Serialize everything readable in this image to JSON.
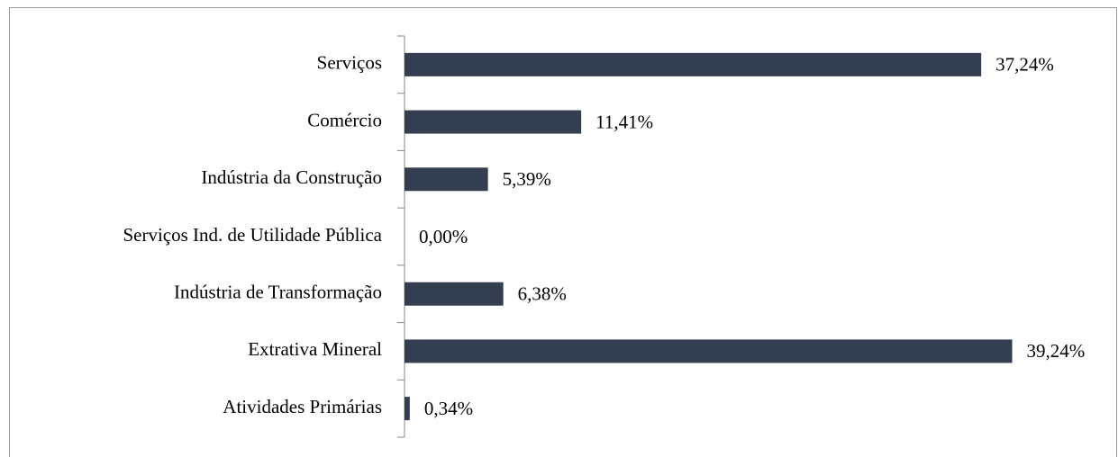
{
  "chart_data": {
    "type": "bar",
    "orientation": "horizontal",
    "color": "#333f50",
    "categories": [
      "Serviços",
      "Comércio",
      "Indústria da Construção",
      "Serviços Ind. de Utilidade Pública",
      "Indústria de Transformação",
      "Extrativa Mineral",
      "Atividades Primárias"
    ],
    "values": [
      37.24,
      11.41,
      5.39,
      0.0,
      6.38,
      39.24,
      0.34
    ],
    "value_labels": [
      "37,24%",
      "11,41%",
      "5,39%",
      "0,00%",
      "6,38%",
      "39,24%",
      "0,34%"
    ]
  }
}
